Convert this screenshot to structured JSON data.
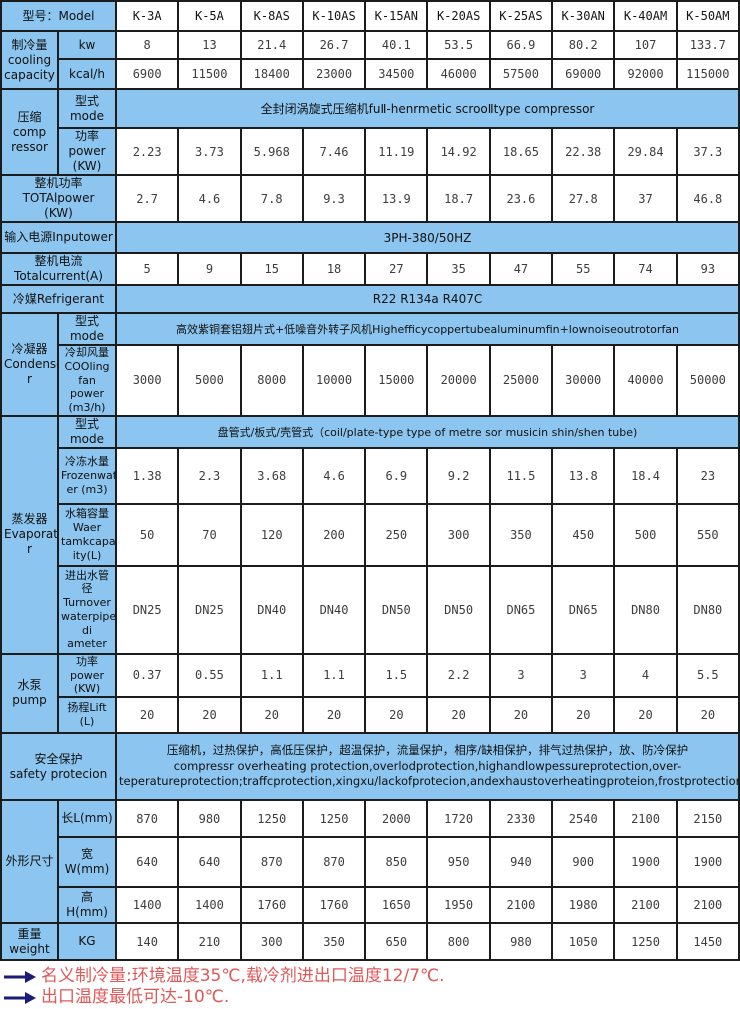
{
  "colors": {
    "accent_blue": "#8cc6f0",
    "border_black": "#1c1c1c",
    "footnote_red": "#e05858",
    "arrow_navy": "#1b1b78"
  },
  "header": {
    "model_label": "型号：Model",
    "models": [
      "K-3A",
      "K-5A",
      "K-8AS",
      "K-10AS",
      "K-15AN",
      "K-20AS",
      "K-25AS",
      "K-30AN",
      "K-40AM",
      "K-50AM"
    ]
  },
  "labels": {
    "cooling_capacity": "制冷量\ncooling\ncapacity",
    "kw": "kw",
    "kcal": "kcal/h",
    "compressor": "压缩\ncomp\nressor",
    "mode": "型式mode",
    "comp_power": "功率\npower\n(KW)",
    "total_power": "整机功率\nTOTAlpower\n(KW)",
    "input_power": "输入电源Inputower",
    "total_current": "整机电流\nTotalcurrent(A)",
    "refrigerant": "冷媒Refrigerant",
    "condenser": "冷凝器\nCondense\nr",
    "cooling_fan": "冷却风量\nCOOling\nfan power\n(m3/h)",
    "evaporator": "蒸发器\nEvaporato\nr",
    "frozen_water": "冷冻水量\nFrozenwat\ner (m3)",
    "water_tank": "水箱容量\nWaer\ntamkcapac\nity(L)",
    "pipe_diameter": "进出水管径\nTurnover\nwaterpipe\ndi ameter",
    "pump": "水泵\npump",
    "pump_power": "功率power\n(KW)",
    "lift": "扬程Lift\n(L)",
    "safety": "安全保护\nsafety protecion",
    "dimensions": "外形尺寸",
    "length": "长L(mm)",
    "width": "宽W(mm)",
    "height": "高H(mm)",
    "weight": "重量\nweight",
    "kg": "KG"
  },
  "spans": {
    "compressor_mode": "全封闭涡旋式压缩机fuⅡ-henrmetic scrooⅡtype compressor",
    "input_power": "3PH-380/50HZ",
    "refrigerant": "R22 R134a R407C",
    "condenser_mode": "高效紫铜套铝翅片式+低噪音外转子风机Highefficycoppertubealuminumfin+lownoiseoutrotorfan",
    "evaporator_mode": "盘管式/板式/壳管式（coil/plate-type type of metre sor musicin shin/shen tube)",
    "safety": "压缩机，过热保护，高低压保护，超温保护，流量保护，相序/缺相保护，排气过热保护，放、防冷保护\ncompressr overheating protection,overlodprotection,highandlowpessureprotection,over-teperatureprotection;traffcprotection,xingxu/lackofprotecion,andexhaustoverheatingproteion,frostprotection"
  },
  "rows": {
    "kw": [
      "8",
      "13",
      "21.4",
      "26.7",
      "40.1",
      "53.5",
      "66.9",
      "80.2",
      "107",
      "133.7"
    ],
    "kcal": [
      "6900",
      "11500",
      "18400",
      "23000",
      "34500",
      "46000",
      "57500",
      "69000",
      "92000",
      "115000"
    ],
    "comp_power": [
      "2.23",
      "3.73",
      "5.968",
      "7.46",
      "11.19",
      "14.92",
      "18.65",
      "22.38",
      "29.84",
      "37.3"
    ],
    "total_power": [
      "2.7",
      "4.6",
      "7.8",
      "9.3",
      "13.9",
      "18.7",
      "23.6",
      "27.8",
      "37",
      "46.8"
    ],
    "total_current": [
      "5",
      "9",
      "15",
      "18",
      "27",
      "35",
      "47",
      "55",
      "74",
      "93"
    ],
    "cooling_fan": [
      "3000",
      "5000",
      "8000",
      "10000",
      "15000",
      "20000",
      "25000",
      "30000",
      "40000",
      "50000"
    ],
    "frozen_water": [
      "1.38",
      "2.3",
      "3.68",
      "4.6",
      "6.9",
      "9.2",
      "11.5",
      "13.8",
      "18.4",
      "23"
    ],
    "water_tank": [
      "50",
      "70",
      "120",
      "200",
      "250",
      "300",
      "350",
      "450",
      "500",
      "550"
    ],
    "pipe_diameter": [
      "DN25",
      "DN25",
      "DN40",
      "DN40",
      "DN50",
      "DN50",
      "DN65",
      "DN65",
      "DN80",
      "DN80"
    ],
    "pump_power": [
      "0.37",
      "0.55",
      "1.1",
      "1.1",
      "1.5",
      "2.2",
      "3",
      "3",
      "4",
      "5.5"
    ],
    "lift": [
      "20",
      "20",
      "20",
      "20",
      "20",
      "20",
      "20",
      "20",
      "20",
      "20"
    ],
    "length": [
      "870",
      "980",
      "1250",
      "1250",
      "2000",
      "1720",
      "2330",
      "2540",
      "2100",
      "2150"
    ],
    "width": [
      "640",
      "640",
      "870",
      "870",
      "850",
      "950",
      "940",
      "900",
      "1900",
      "1900"
    ],
    "height": [
      "1400",
      "1400",
      "1760",
      "1760",
      "1650",
      "1950",
      "2100",
      "1980",
      "2100",
      "2100"
    ],
    "weight": [
      "140",
      "210",
      "300",
      "350",
      "650",
      "800",
      "980",
      "1050",
      "1250",
      "1450"
    ]
  },
  "footnotes": [
    "名义制冷量:环境温度35℃,载冷剂进出口温度12/7℃.",
    "出口温度最低可达-10℃."
  ]
}
